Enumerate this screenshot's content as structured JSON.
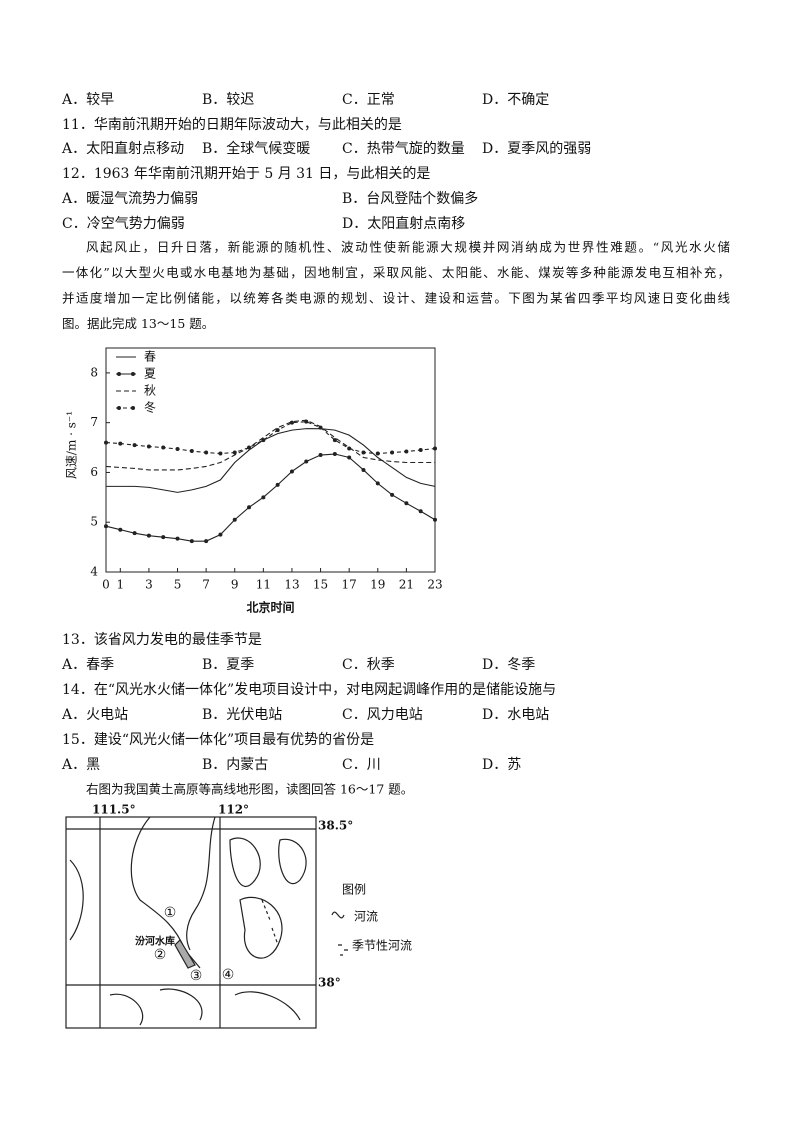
{
  "q10_options": [
    "A．较早",
    "B．较迟",
    "C．正常",
    "D．不确定"
  ],
  "questions": [
    {
      "stem": "11．华南前汛期开始的日期年际波动大，与此相关的是",
      "options": [
        "A．太阳直射点移动",
        "B．全球气候变暖",
        "C．热带气旋的数量",
        "D．夏季风的强弱"
      ]
    },
    {
      "stem": "12．1963 年华南前汛期开始于 5 月 31 日，与此相关的是",
      "options": [
        "A．暖湿气流势力偏弱",
        "B．台风登陆个数偏多",
        "C．冷空气势力偏弱",
        "D．太阳直射点南移"
      ]
    }
  ],
  "passage": {
    "lines": [
      "风起风止，日升日落，新能源的随机性、波动性使新能源大规模并网消纳成为世界性难题。“风光水火储",
      "一体化”以大型火电或水电基地为基础，因地制宜，采取风能、太阳能、水能、煤炭等多种能源发电互相补充，",
      "并适度增加一定比例储能，以统筹各类电源的规划、设计、建设和运营。下图为某省四季平均风速日变化曲线",
      "图。据此完成 13～15 题。"
    ]
  },
  "chart_data": {
    "type": "line",
    "ylabel": "风速/m · s⁻¹",
    "xlabel": "北京时间",
    "x": [
      0,
      1,
      2,
      3,
      4,
      5,
      6,
      7,
      8,
      9,
      10,
      11,
      12,
      13,
      14,
      15,
      16,
      17,
      18,
      19,
      20,
      21,
      22,
      23
    ],
    "xlim": [
      0,
      23
    ],
    "xticks": [
      0,
      1,
      3,
      5,
      7,
      9,
      11,
      13,
      15,
      17,
      19,
      21,
      23
    ],
    "ylim": [
      4,
      8.5
    ],
    "yticks": [
      4,
      5,
      6,
      7,
      8
    ],
    "legend": "upper-left",
    "series": [
      {
        "name": "春",
        "color": "#222",
        "style": "solid",
        "values": [
          5.72,
          5.72,
          5.72,
          5.7,
          5.65,
          5.6,
          5.65,
          5.72,
          5.85,
          6.2,
          6.45,
          6.65,
          6.78,
          6.85,
          6.88,
          6.88,
          6.85,
          6.75,
          6.55,
          6.3,
          6.1,
          5.9,
          5.78,
          5.72
        ]
      },
      {
        "name": "夏",
        "color": "#222",
        "style": "line-dots",
        "values": [
          4.92,
          4.85,
          4.78,
          4.73,
          4.7,
          4.67,
          4.62,
          4.62,
          4.75,
          5.05,
          5.3,
          5.5,
          5.75,
          6.02,
          6.22,
          6.35,
          6.37,
          6.3,
          6.05,
          5.78,
          5.55,
          5.38,
          5.22,
          5.05
        ]
      },
      {
        "name": "秋",
        "color": "#222",
        "style": "dashed",
        "values": [
          6.12,
          6.1,
          6.08,
          6.05,
          6.05,
          6.05,
          6.08,
          6.12,
          6.2,
          6.35,
          6.5,
          6.7,
          6.9,
          7.02,
          7.05,
          6.92,
          6.7,
          6.5,
          6.3,
          6.25,
          6.22,
          6.2,
          6.2,
          6.2
        ]
      },
      {
        "name": "冬",
        "color": "#222",
        "style": "dashed-dots",
        "values": [
          6.6,
          6.58,
          6.55,
          6.52,
          6.5,
          6.47,
          6.43,
          6.4,
          6.38,
          6.4,
          6.5,
          6.65,
          6.85,
          7.0,
          7.02,
          6.9,
          6.65,
          6.48,
          6.4,
          6.38,
          6.4,
          6.42,
          6.45,
          6.48
        ]
      }
    ]
  },
  "questions2": [
    {
      "stem": "13．该省风力发电的最佳季节是",
      "options": [
        "A．春季",
        "B．夏季",
        "C．秋季",
        "D．冬季"
      ]
    },
    {
      "stem": "14．在“风光水火储一体化”发电项目设计中，对电网起调峰作用的是储能设施与",
      "options": [
        "A．火电站",
        "B．光伏电站",
        "C．风力电站",
        "D．水电站"
      ]
    },
    {
      "stem": "15．建设“风光火储一体化”项目最有优势的省份是",
      "options": [
        "A．黑",
        "B．内蒙古",
        "C．川",
        "D．苏"
      ]
    }
  ],
  "intro2": "右图为我国黄土高原等高线地形图，读图回答 16～17 题。",
  "map": {
    "lon_labels": [
      "111.5°",
      "112°"
    ],
    "lat_labels": [
      "38.5°",
      "38°"
    ],
    "reservoir": "汾河水库",
    "points": [
      "①",
      "②",
      "③",
      "④"
    ],
    "legend_title": "图例",
    "legend_items": [
      "河流",
      "季节性河流"
    ]
  }
}
